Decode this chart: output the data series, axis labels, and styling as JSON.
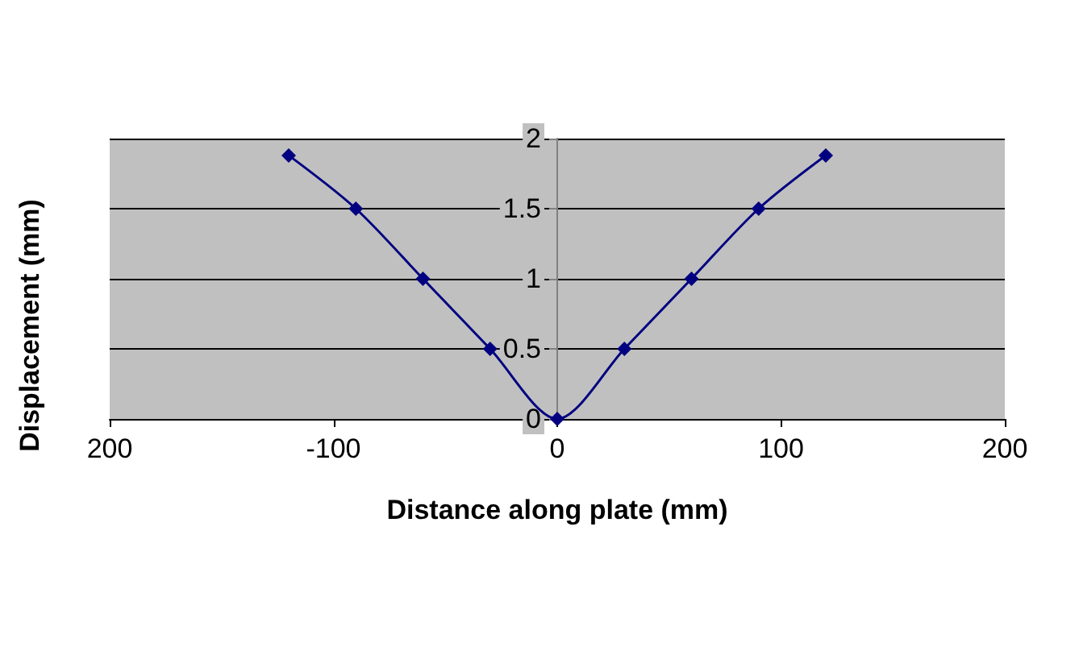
{
  "chart_data": {
    "type": "line",
    "xlabel": "Distance along plate (mm)",
    "ylabel": "Displacement (mm)",
    "x": [
      -120,
      -90,
      -60,
      -30,
      0,
      30,
      60,
      90,
      120
    ],
    "series": [
      {
        "color": "#000080",
        "values": [
          1.88,
          1.5,
          1,
          0.5,
          0,
          0.5,
          1,
          1.5,
          1.88
        ]
      }
    ],
    "xlim": [
      -200,
      200
    ],
    "xticks": [
      {
        "value": -200,
        "label": "200"
      },
      -100,
      0,
      100,
      200
    ],
    "ylim": [
      0,
      2
    ],
    "yticks": [
      0,
      0.5,
      1,
      1.5,
      2
    ],
    "grid": "y",
    "marker": "diamond",
    "line_style": "solid"
  }
}
